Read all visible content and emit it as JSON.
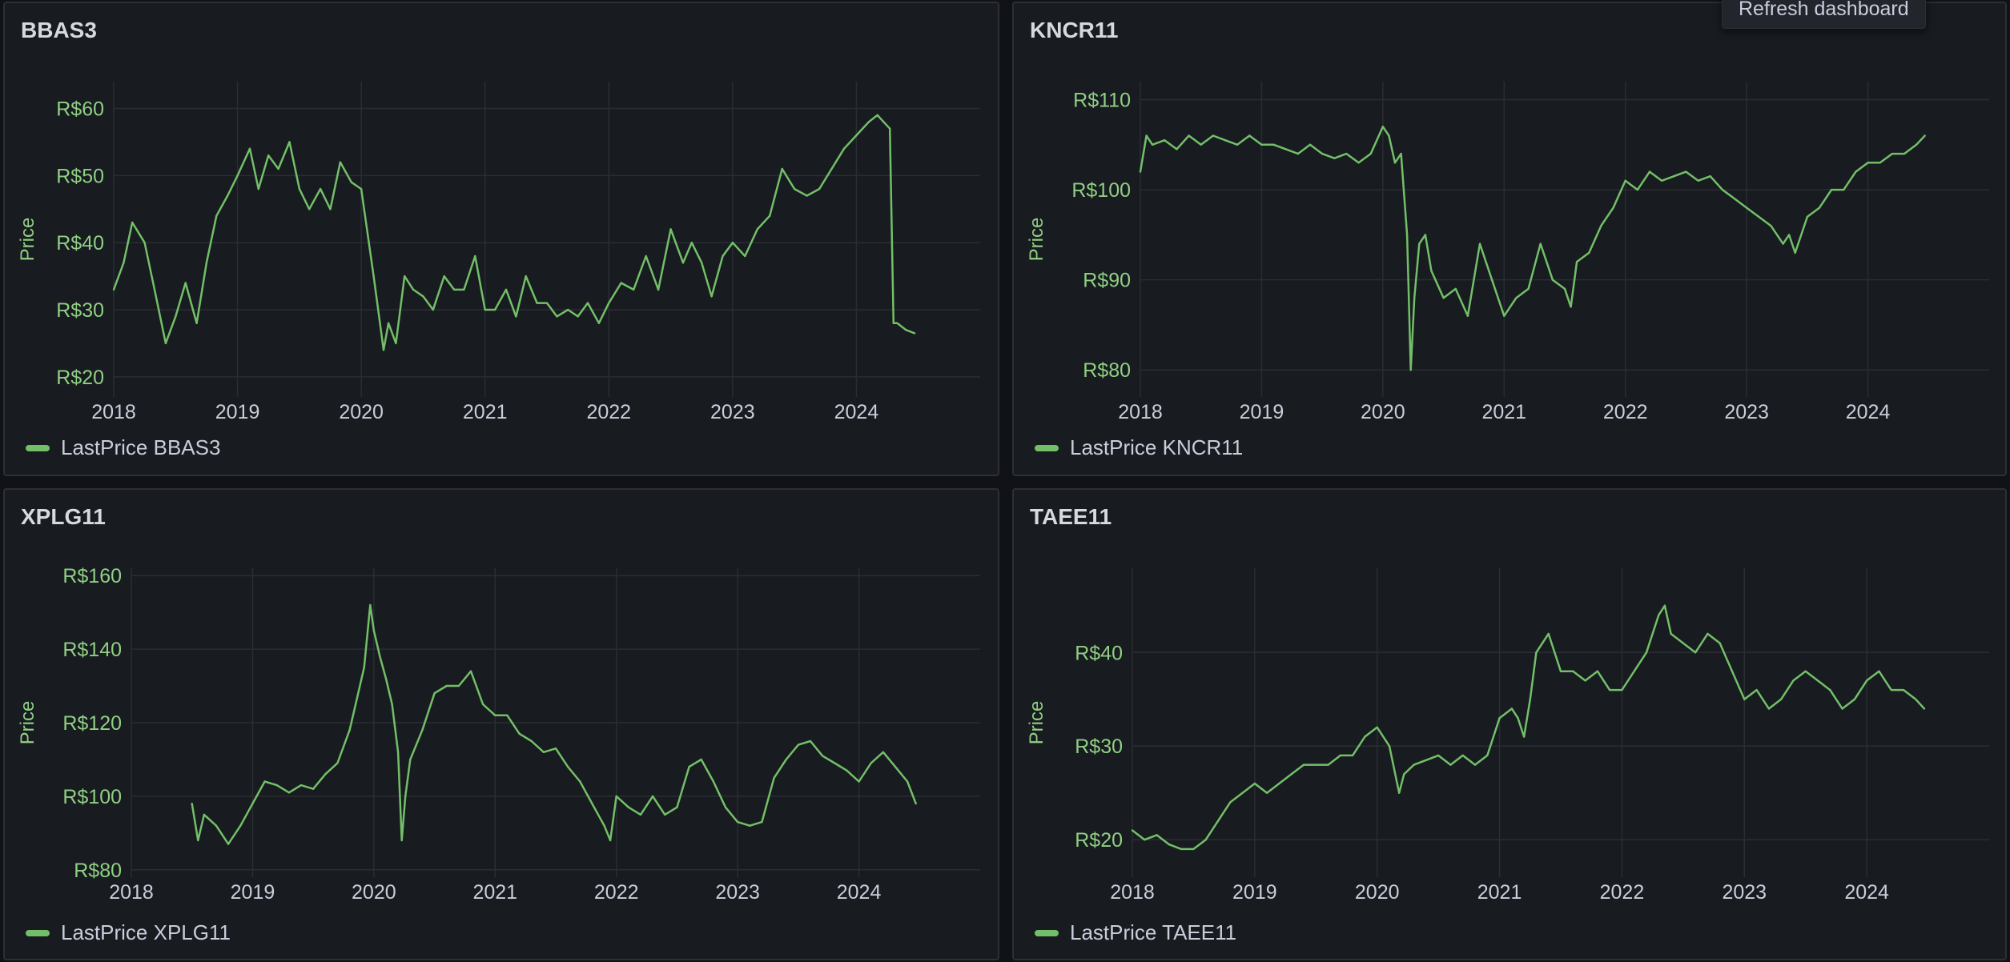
{
  "colors": {
    "series": "#73bf69",
    "grid": "#2a2d33",
    "axis_text": "#ccccdc",
    "ylabel_text": "#8fcf83"
  },
  "tooltip": {
    "text": "Refresh dashboard"
  },
  "panels": [
    {
      "title": "BBAS3",
      "legend": "LastPrice BBAS3",
      "y_axis_label": "Price"
    },
    {
      "title": "KNCR11",
      "legend": "LastPrice KNCR11",
      "y_axis_label": "Price"
    },
    {
      "title": "XPLG11",
      "legend": "LastPrice XPLG11",
      "y_axis_label": "Price"
    },
    {
      "title": "TAEE11",
      "legend": "LastPrice TAEE11",
      "y_axis_label": "Price"
    }
  ],
  "chart_data": [
    {
      "type": "line",
      "title": "BBAS3",
      "ylabel": "Price",
      "xlim": [
        2018,
        2025.0
      ],
      "ylim": [
        17,
        64
      ],
      "x_ticks": [
        "2018",
        "2019",
        "2020",
        "2021",
        "2022",
        "2023",
        "2024"
      ],
      "y_ticks": [
        20,
        30,
        40,
        50,
        60
      ],
      "y_tick_labels": [
        "R$20",
        "R$30",
        "R$40",
        "R$50",
        "R$60"
      ],
      "series": [
        {
          "name": "LastPrice BBAS3",
          "x": [
            2018.0,
            2018.08,
            2018.15,
            2018.25,
            2018.33,
            2018.42,
            2018.5,
            2018.58,
            2018.67,
            2018.75,
            2018.83,
            2018.92,
            2019.0,
            2019.1,
            2019.17,
            2019.25,
            2019.33,
            2019.42,
            2019.5,
            2019.58,
            2019.67,
            2019.75,
            2019.83,
            2019.92,
            2020.0,
            2020.1,
            2020.18,
            2020.22,
            2020.28,
            2020.35,
            2020.42,
            2020.5,
            2020.58,
            2020.67,
            2020.75,
            2020.83,
            2020.92,
            2021.0,
            2021.08,
            2021.17,
            2021.25,
            2021.33,
            2021.42,
            2021.5,
            2021.58,
            2021.67,
            2021.75,
            2021.83,
            2021.92,
            2022.0,
            2022.1,
            2022.2,
            2022.3,
            2022.4,
            2022.5,
            2022.6,
            2022.67,
            2022.75,
            2022.83,
            2022.92,
            2023.0,
            2023.1,
            2023.2,
            2023.3,
            2023.4,
            2023.5,
            2023.6,
            2023.7,
            2023.8,
            2023.9,
            2024.0,
            2024.1,
            2024.17,
            2024.22,
            2024.27,
            2024.3,
            2024.33,
            2024.4,
            2024.47
          ],
          "y": [
            33,
            37,
            43,
            40,
            33,
            25,
            29,
            34,
            28,
            37,
            44,
            47,
            50,
            54,
            48,
            53,
            51,
            55,
            48,
            45,
            48,
            45,
            52,
            49,
            48,
            35,
            24,
            28,
            25,
            35,
            33,
            32,
            30,
            35,
            33,
            33,
            38,
            30,
            30,
            33,
            29,
            35,
            31,
            31,
            29,
            30,
            29,
            31,
            28,
            31,
            34,
            33,
            38,
            33,
            42,
            37,
            40,
            37,
            32,
            38,
            40,
            38,
            42,
            44,
            51,
            48,
            47,
            48,
            51,
            54,
            56,
            58,
            59,
            58,
            57,
            28,
            28,
            27,
            26.5
          ]
        }
      ]
    },
    {
      "type": "line",
      "title": "KNCR11",
      "ylabel": "Price",
      "xlim": [
        2018,
        2025.0
      ],
      "ylim": [
        77,
        112
      ],
      "x_ticks": [
        "2018",
        "2019",
        "2020",
        "2021",
        "2022",
        "2023",
        "2024"
      ],
      "y_ticks": [
        80,
        90,
        100,
        110
      ],
      "y_tick_labels": [
        "R$80",
        "R$90",
        "R$100",
        "R$110"
      ],
      "series": [
        {
          "name": "LastPrice KNCR11",
          "x": [
            2018.0,
            2018.05,
            2018.1,
            2018.2,
            2018.3,
            2018.4,
            2018.5,
            2018.6,
            2018.7,
            2018.8,
            2018.9,
            2019.0,
            2019.1,
            2019.2,
            2019.3,
            2019.4,
            2019.5,
            2019.6,
            2019.7,
            2019.8,
            2019.9,
            2020.0,
            2020.05,
            2020.1,
            2020.15,
            2020.2,
            2020.23,
            2020.26,
            2020.3,
            2020.35,
            2020.4,
            2020.5,
            2020.6,
            2020.7,
            2020.8,
            2020.9,
            2021.0,
            2021.1,
            2021.2,
            2021.3,
            2021.4,
            2021.5,
            2021.55,
            2021.6,
            2021.7,
            2021.8,
            2021.9,
            2022.0,
            2022.1,
            2022.2,
            2022.3,
            2022.4,
            2022.5,
            2022.6,
            2022.7,
            2022.8,
            2022.9,
            2023.0,
            2023.1,
            2023.2,
            2023.3,
            2023.35,
            2023.4,
            2023.5,
            2023.6,
            2023.7,
            2023.8,
            2023.9,
            2024.0,
            2024.1,
            2024.2,
            2024.3,
            2024.4,
            2024.47
          ],
          "y": [
            102,
            106,
            105,
            105.5,
            104.5,
            106,
            105,
            106,
            105.5,
            105,
            106,
            105,
            105,
            104.5,
            104,
            105,
            104,
            103.5,
            104,
            103,
            104,
            107,
            106,
            103,
            104,
            95,
            80,
            88,
            94,
            95,
            91,
            88,
            89,
            86,
            94,
            90,
            86,
            88,
            89,
            94,
            90,
            89,
            87,
            92,
            93,
            96,
            98,
            101,
            100,
            102,
            101,
            101.5,
            102,
            101,
            101.5,
            100,
            99,
            98,
            97,
            96,
            94,
            95,
            93,
            97,
            98,
            100,
            100,
            102,
            103,
            103,
            104,
            104,
            105,
            106
          ]
        }
      ]
    },
    {
      "type": "line",
      "title": "XPLG11",
      "ylabel": "Price",
      "xlim": [
        2018,
        2025.0
      ],
      "ylim": [
        78,
        162
      ],
      "x_ticks": [
        "2018",
        "2019",
        "2020",
        "2021",
        "2022",
        "2023",
        "2024"
      ],
      "y_ticks": [
        80,
        100,
        120,
        140,
        160
      ],
      "y_tick_labels": [
        "R$80",
        "R$100",
        "R$120",
        "R$140",
        "R$160"
      ],
      "series": [
        {
          "name": "LastPrice XPLG11",
          "x": [
            2018.5,
            2018.55,
            2018.6,
            2018.7,
            2018.8,
            2018.9,
            2019.0,
            2019.1,
            2019.2,
            2019.3,
            2019.4,
            2019.5,
            2019.6,
            2019.7,
            2019.8,
            2019.85,
            2019.92,
            2019.97,
            2020.0,
            2020.05,
            2020.1,
            2020.15,
            2020.2,
            2020.23,
            2020.26,
            2020.3,
            2020.4,
            2020.5,
            2020.6,
            2020.7,
            2020.8,
            2020.9,
            2021.0,
            2021.1,
            2021.2,
            2021.3,
            2021.4,
            2021.5,
            2021.6,
            2021.7,
            2021.8,
            2021.9,
            2021.95,
            2022.0,
            2022.1,
            2022.2,
            2022.3,
            2022.4,
            2022.5,
            2022.6,
            2022.7,
            2022.8,
            2022.9,
            2023.0,
            2023.1,
            2023.2,
            2023.3,
            2023.4,
            2023.5,
            2023.6,
            2023.7,
            2023.8,
            2023.9,
            2024.0,
            2024.1,
            2024.2,
            2024.3,
            2024.4,
            2024.47
          ],
          "y": [
            98,
            88,
            95,
            92,
            87,
            92,
            98,
            104,
            103,
            101,
            103,
            102,
            106,
            109,
            118,
            125,
            135,
            152,
            145,
            138,
            132,
            125,
            112,
            88,
            100,
            110,
            118,
            128,
            130,
            130,
            134,
            125,
            122,
            122,
            117,
            115,
            112,
            113,
            108,
            104,
            98,
            92,
            88,
            100,
            97,
            95,
            100,
            95,
            97,
            108,
            110,
            104,
            97,
            93,
            92,
            93,
            105,
            110,
            114,
            115,
            111,
            109,
            107,
            104,
            109,
            112,
            108,
            104,
            98
          ]
        }
      ]
    },
    {
      "type": "line",
      "title": "TAEE11",
      "ylabel": "Price",
      "xlim": [
        2018,
        2025.0
      ],
      "ylim": [
        16,
        49
      ],
      "x_ticks": [
        "2018",
        "2019",
        "2020",
        "2021",
        "2022",
        "2023",
        "2024"
      ],
      "y_ticks": [
        20,
        30,
        40
      ],
      "y_tick_labels": [
        "R$20",
        "R$30",
        "R$40"
      ],
      "series": [
        {
          "name": "LastPrice TAEE11",
          "x": [
            2018.0,
            2018.1,
            2018.2,
            2018.3,
            2018.4,
            2018.5,
            2018.6,
            2018.7,
            2018.8,
            2018.9,
            2019.0,
            2019.1,
            2019.2,
            2019.3,
            2019.4,
            2019.5,
            2019.6,
            2019.7,
            2019.8,
            2019.9,
            2020.0,
            2020.1,
            2020.18,
            2020.22,
            2020.3,
            2020.4,
            2020.5,
            2020.6,
            2020.7,
            2020.8,
            2020.9,
            2021.0,
            2021.1,
            2021.15,
            2021.2,
            2021.25,
            2021.3,
            2021.4,
            2021.5,
            2021.6,
            2021.7,
            2021.8,
            2021.9,
            2022.0,
            2022.1,
            2022.2,
            2022.3,
            2022.35,
            2022.4,
            2022.5,
            2022.6,
            2022.7,
            2022.8,
            2022.9,
            2023.0,
            2023.1,
            2023.2,
            2023.3,
            2023.4,
            2023.5,
            2023.6,
            2023.7,
            2023.8,
            2023.9,
            2024.0,
            2024.1,
            2024.2,
            2024.3,
            2024.4,
            2024.47
          ],
          "y": [
            21,
            20,
            20.5,
            19.5,
            19,
            19,
            20,
            22,
            24,
            25,
            26,
            25,
            26,
            27,
            28,
            28,
            28,
            29,
            29,
            31,
            32,
            30,
            25,
            27,
            28,
            28.5,
            29,
            28,
            29,
            28,
            29,
            33,
            34,
            33,
            31,
            35,
            40,
            42,
            38,
            38,
            37,
            38,
            36,
            36,
            38,
            40,
            44,
            45,
            42,
            41,
            40,
            42,
            41,
            38,
            35,
            36,
            34,
            35,
            37,
            38,
            37,
            36,
            34,
            35,
            37,
            38,
            36,
            36,
            35,
            34
          ]
        }
      ]
    }
  ]
}
